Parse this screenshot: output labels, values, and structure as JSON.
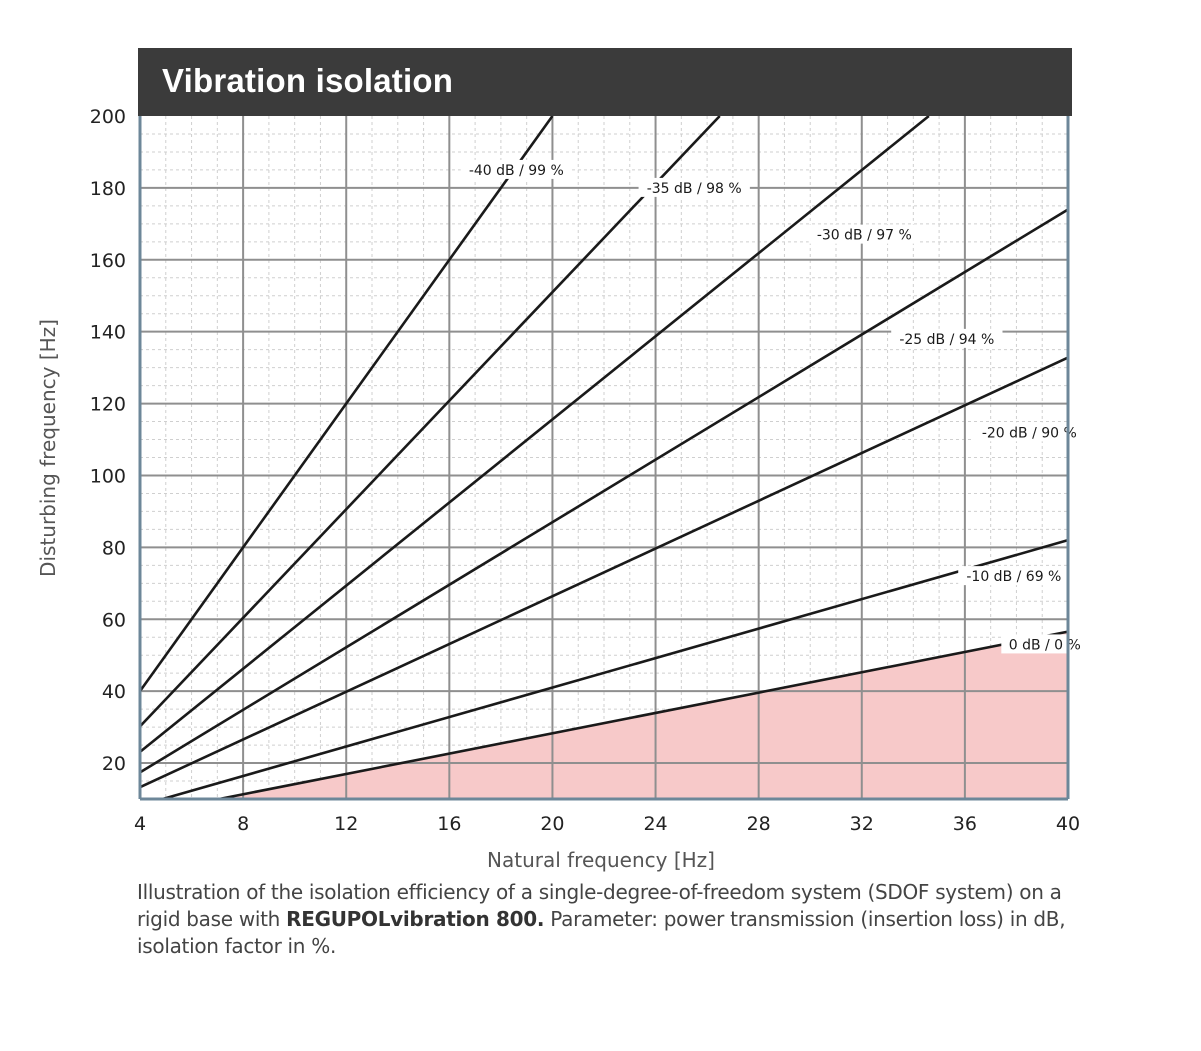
{
  "title": "Vibration isolation",
  "caption": {
    "part1": "Illustration of the isolation efficiency of a single-degree-of-freedom system (SDOF system) on a rigid base with ",
    "product": "REGUPOLvibration 800.",
    "part2": " Parameter: power transmission (insertion loss) in dB, isolation factor in %."
  },
  "chart_data": {
    "type": "line",
    "xlabel": "Natural frequency [Hz]",
    "ylabel": "Disturbing frequency [Hz]",
    "xlim": [
      4,
      40
    ],
    "ylim": [
      10,
      200
    ],
    "x_ticks": [
      4,
      8,
      12,
      16,
      20,
      24,
      28,
      32,
      36,
      40
    ],
    "x_tick_labels": [
      "4",
      "8",
      "12",
      "16",
      "20",
      "24",
      "28",
      "32",
      "36",
      "40"
    ],
    "y_ticks": [
      20,
      40,
      60,
      80,
      100,
      120,
      140,
      160,
      180,
      200
    ],
    "y_tick_labels": [
      "20",
      "40",
      "60",
      "80",
      "100",
      "120",
      "140",
      "160",
      "180",
      "200"
    ],
    "grid": true,
    "shaded_region": {
      "below_series": "0 dB / 0 %",
      "color": "#f7c9c9"
    },
    "line_color": "#1a1a1a",
    "series": [
      {
        "name": "-40 dB / 99 %",
        "ratio": 10.0,
        "label_at": [
          18.6,
          185
        ]
      },
      {
        "name": "-35 dB / 98 %",
        "ratio": 7.55,
        "label_at": [
          25.5,
          180
        ]
      },
      {
        "name": "-30 dB / 97 %",
        "ratio": 5.78,
        "label_at": [
          32.1,
          167
        ]
      },
      {
        "name": "-25 dB / 94 %",
        "ratio": 4.35,
        "label_at": [
          35.3,
          138
        ]
      },
      {
        "name": "-20 dB / 90 %",
        "ratio": 3.32,
        "label_at": [
          38.5,
          112
        ]
      },
      {
        "name": "-10 dB / 69 %",
        "ratio": 2.05,
        "label_at": [
          37.9,
          72
        ]
      },
      {
        "name": "0 dB / 0 %",
        "ratio": 1.414,
        "label_at": [
          39.1,
          53
        ]
      }
    ]
  }
}
